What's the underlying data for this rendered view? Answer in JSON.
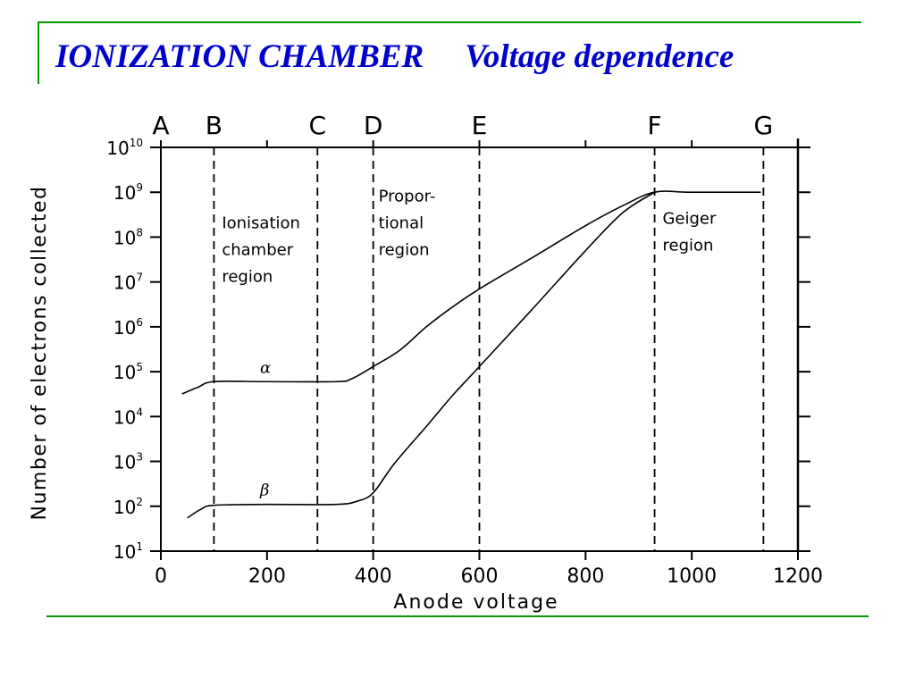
{
  "title": {
    "main": "IONIZATION CHAMBER",
    "subtitle": "Voltage dependence"
  },
  "colors": {
    "title": "#0000cc",
    "rule": "#009900",
    "ink": "#000000"
  },
  "chart_data": {
    "type": "line",
    "xlabel": "Anode voltage",
    "ylabel": "Number of electrons collected",
    "xlim": [
      0,
      1200
    ],
    "x_ticks": [
      0,
      200,
      400,
      600,
      800,
      1000,
      1200
    ],
    "y_scale": "log",
    "ylim_exponents": [
      1,
      10
    ],
    "y_tick_base": "10",
    "y_tick_exponents": [
      "1",
      "2",
      "3",
      "4",
      "5",
      "6",
      "7",
      "8",
      "9",
      "10"
    ],
    "grid": false,
    "series": [
      {
        "name": "α",
        "points": [
          [
            40,
            32000.0
          ],
          [
            70,
            45000.0
          ],
          [
            100,
            60000.0
          ],
          [
            200,
            60000.0
          ],
          [
            330,
            60000.0
          ],
          [
            360,
            70000.0
          ],
          [
            400,
            130000.0
          ],
          [
            450,
            300000.0
          ],
          [
            500,
            1000000.0
          ],
          [
            550,
            2800000.0
          ],
          [
            600,
            7000000.0
          ],
          [
            700,
            35000000.0
          ],
          [
            800,
            180000000.0
          ],
          [
            870,
            500000000.0
          ],
          [
            930,
            1000000000.0
          ],
          [
            1000,
            1000000000.0
          ],
          [
            1130,
            1000000000.0
          ]
        ]
      },
      {
        "name": "β",
        "points": [
          [
            50,
            55
          ],
          [
            75,
            85
          ],
          [
            100,
            105
          ],
          [
            200,
            110
          ],
          [
            330,
            110
          ],
          [
            370,
            130
          ],
          [
            400,
            200
          ],
          [
            440,
            900
          ],
          [
            500,
            6000.0
          ],
          [
            550,
            30000.0
          ],
          [
            600,
            130000.0
          ],
          [
            700,
            2500000.0
          ],
          [
            800,
            50000000.0
          ],
          [
            870,
            350000000.0
          ],
          [
            930,
            1000000000.0
          ]
        ]
      }
    ],
    "regions": [
      {
        "label": "A",
        "x": 0,
        "line": false
      },
      {
        "label": "B",
        "x": 100,
        "line": true
      },
      {
        "label": "C",
        "x": 295,
        "line": true
      },
      {
        "label": "D",
        "x": 400,
        "line": true
      },
      {
        "label": "E",
        "x": 600,
        "line": true
      },
      {
        "label": "F",
        "x": 930,
        "line": true
      },
      {
        "label": "G",
        "x": 1135,
        "line": true
      }
    ],
    "annotations": [
      {
        "lines": [
          "Ionisation",
          "chamber",
          "region"
        ],
        "x": 115,
        "y_exp": 8.2
      },
      {
        "lines": [
          "Propor-",
          "tional",
          "region"
        ],
        "x": 410,
        "y_exp": 8.8
      },
      {
        "lines": [
          "Geiger",
          "region"
        ],
        "x": 945,
        "y_exp": 8.3
      }
    ]
  }
}
